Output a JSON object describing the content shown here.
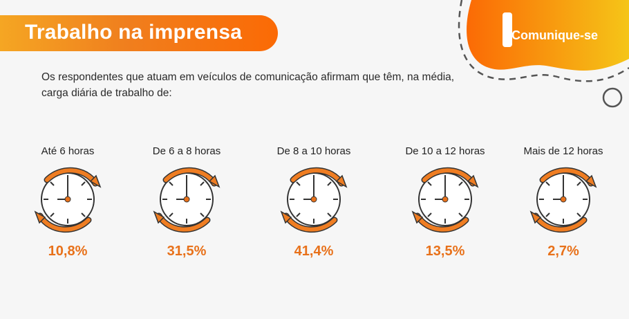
{
  "header": {
    "title": "Trabalho na imprensa",
    "brand": "Comunique-se"
  },
  "intro": "Os respondentes que atuam em veículos de comunicação afirmam que têm, na média, carga diária de trabalho de:",
  "colors": {
    "accent": "#e8711a",
    "orange": "#fb6a05",
    "yellow": "#f5c518"
  },
  "items": [
    {
      "label": "Até 6 horas",
      "value": "10,8%",
      "icon": "clock-icon"
    },
    {
      "label": "De 6 a 8 horas",
      "value": "31,5%",
      "icon": "clock-icon"
    },
    {
      "label": "De 8 a 10 horas",
      "value": "41,4%",
      "icon": "clock-icon"
    },
    {
      "label": "De 10 a 12 horas",
      "value": "13,5%",
      "icon": "clock-icon"
    },
    {
      "label": "Mais de 12 horas",
      "value": "2,7%",
      "icon": "clock-icon"
    }
  ]
}
